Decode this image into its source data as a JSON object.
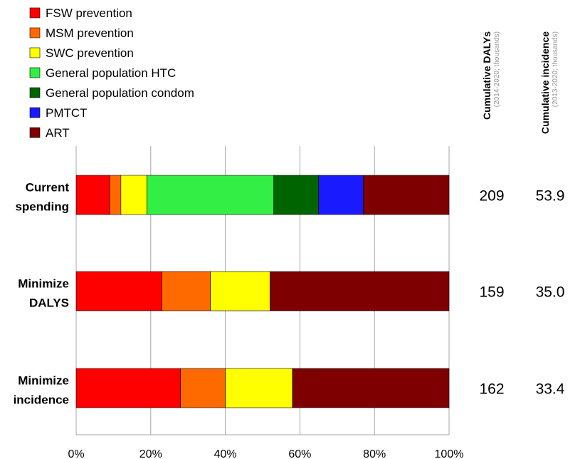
{
  "chart_data": {
    "type": "bar",
    "orientation": "horizontal",
    "stacked": true,
    "percent": true,
    "categories": [
      [
        "Current",
        "spending"
      ],
      [
        "Minimize",
        "DALYS"
      ],
      [
        "Minimize",
        "incidence"
      ]
    ],
    "series": [
      {
        "name": "FSW prevention",
        "color": "#ff0000",
        "values": [
          9,
          23,
          28
        ]
      },
      {
        "name": "MSM prevention",
        "color": "#ff6a00",
        "values": [
          3,
          13,
          12
        ]
      },
      {
        "name": "SWC prevention",
        "color": "#ffff00",
        "values": [
          7,
          16,
          18
        ]
      },
      {
        "name": "General population HTC",
        "color": "#33ee44",
        "values": [
          34,
          0,
          0
        ]
      },
      {
        "name": "General population condom",
        "color": "#006400",
        "values": [
          12,
          0,
          0
        ]
      },
      {
        "name": "PMTCT",
        "color": "#1a1aff",
        "values": [
          12,
          0,
          0
        ]
      },
      {
        "name": "ART",
        "color": "#7f0000",
        "values": [
          23,
          48,
          42
        ]
      }
    ],
    "xlim": [
      0,
      100
    ],
    "xticks": [
      "0%",
      "20%",
      "40%",
      "60%",
      "80%",
      "100%"
    ],
    "grid": true,
    "legend_position": "top-left",
    "side_columns": [
      {
        "title": "Cumulative DALYs",
        "subtitle": "(2014-2020; thousands)",
        "values": [
          "209",
          "159",
          "162"
        ]
      },
      {
        "title": "Cumulative incidence",
        "subtitle": "(2013-2020; thousands)",
        "values": [
          "53.9",
          "35.0",
          "33.4"
        ]
      }
    ]
  }
}
